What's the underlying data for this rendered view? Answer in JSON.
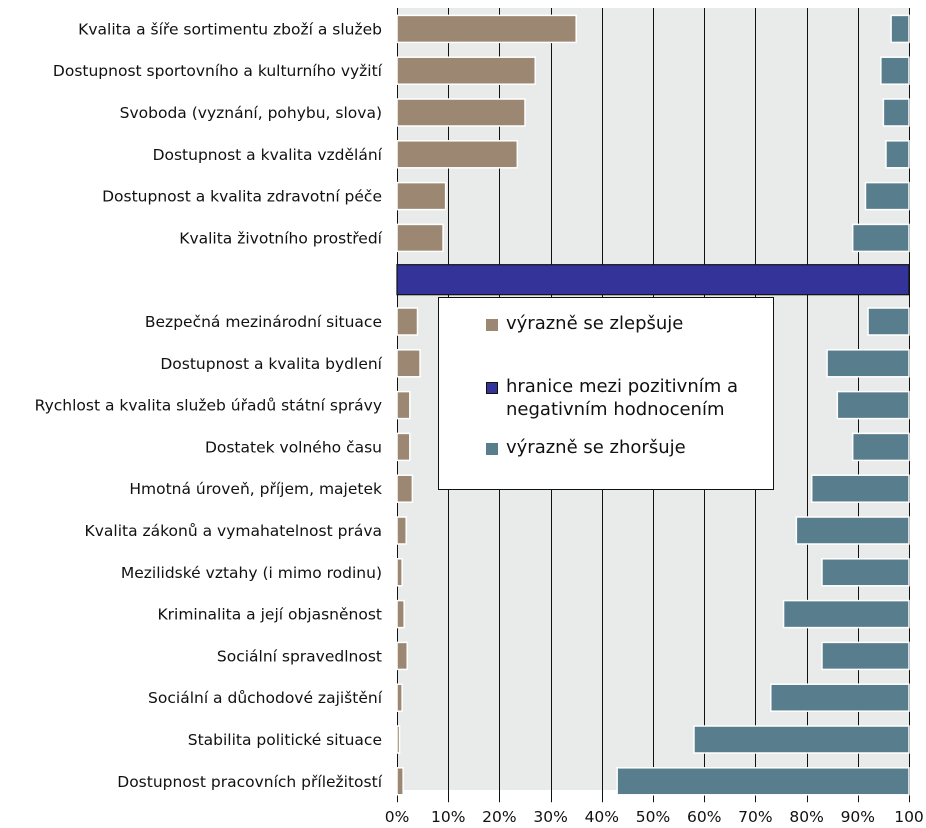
{
  "chart_data": {
    "type": "bar",
    "orientation": "horizontal",
    "categories": [
      "Kvalita a šíře sortimentu zboží a služeb",
      "Dostupnost sportovního a kulturního vyžití",
      "Svoboda (vyznání, pohybu, slova)",
      "Dostupnost a kvalita vzdělání",
      "Dostupnost a kvalita zdravotní péče",
      "Kvalita životního prostředí",
      "",
      "Bezpečná mezinárodní situace",
      "Dostupnost a kvalita bydlení",
      "Rychlost a kvalita služeb úřadů státní správy",
      "Dostatek volného času",
      "Hmotná úroveň, příjem, majetek",
      "Kvalita zákonů a vymahatelnost práva",
      "Mezilidské vztahy (i mimo rodinu)",
      "Kriminalita a její objasněnost",
      "Sociální spravedlnost",
      "Sociální a důchodové zajištění",
      "Stabilita politické situace",
      "Dostupnost pracovních příležitostí"
    ],
    "series": [
      {
        "name": "výrazně se zlepšuje",
        "color": "#9c8872",
        "values": [
          35,
          27,
          25,
          23.5,
          9.5,
          9,
          null,
          4,
          4.5,
          2.5,
          2.5,
          3,
          1.8,
          1,
          1.4,
          2,
          1,
          0.5,
          1.2
        ]
      },
      {
        "name": "hranice mezi pozitivním a negativním hodnocením",
        "color": "#333399",
        "values": [
          null,
          null,
          null,
          null,
          null,
          null,
          100,
          null,
          null,
          null,
          null,
          null,
          null,
          null,
          null,
          null,
          null,
          null,
          null
        ]
      },
      {
        "name": "výrazně se zhoršuje",
        "color": "#587d8c",
        "values": [
          3.5,
          5.5,
          5,
          4.5,
          8.5,
          11,
          null,
          8,
          16,
          14,
          11,
          19,
          22,
          17,
          24.5,
          17,
          27,
          42,
          57
        ]
      }
    ],
    "x_ticks": [
      "0%",
      "10%",
      "20%",
      "30%",
      "40%",
      "50%",
      "60%",
      "70%",
      "80%",
      "90%",
      "100"
    ],
    "xlim": [
      0,
      100
    ],
    "grid": true,
    "legend_position": "center",
    "title": "",
    "xlabel": "",
    "ylabel": ""
  },
  "legend": {
    "items": [
      {
        "label": "výrazně se zlepšuje",
        "color": "#9c8872"
      },
      {
        "label_line1": "hranice mezi pozitivním a",
        "label_line2": "negativním hodnocením",
        "color": "#333399"
      },
      {
        "label": "výrazně se zhoršuje",
        "color": "#587d8c"
      }
    ]
  },
  "colors": {
    "plot_background": "#e9ebeb",
    "gridline": "#111111",
    "bar_outline": "#ffffff"
  }
}
